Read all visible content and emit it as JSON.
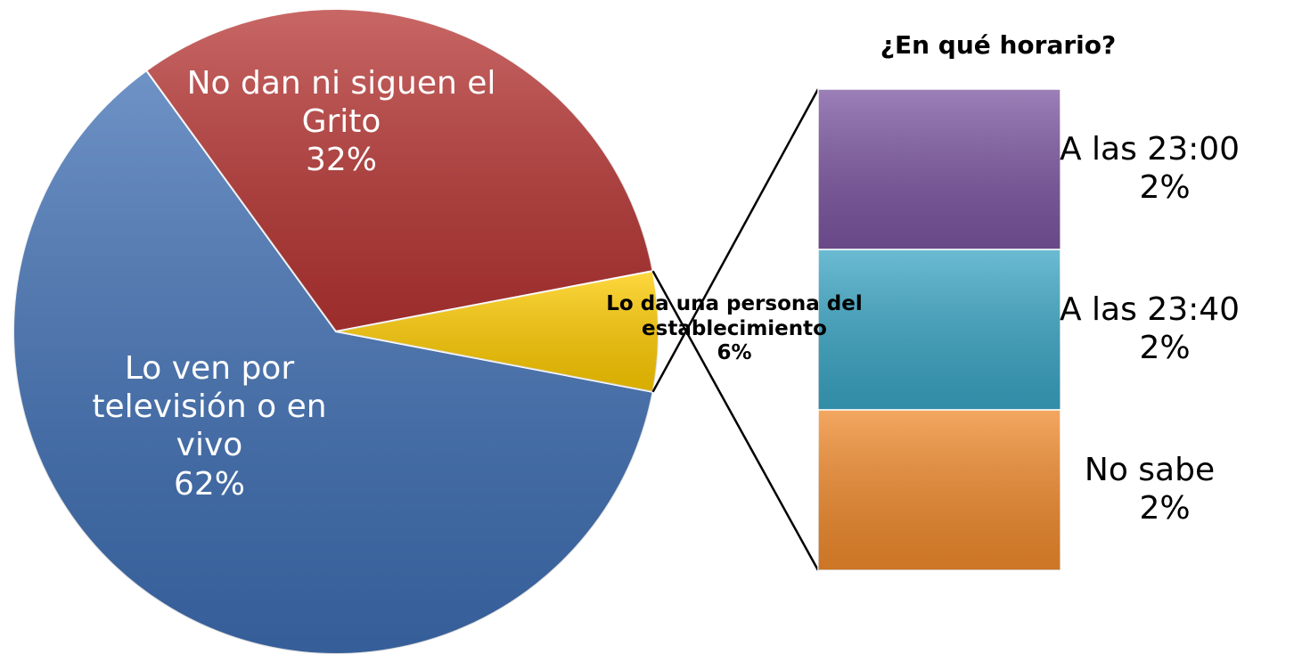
{
  "chart_data": {
    "type": "pie-of-bar",
    "pie": {
      "categories": [
        "Lo ven por televisión o en vivo",
        "No dan ni siguen el Grito",
        "Lo da una persona del establecimiento"
      ],
      "values": [
        62,
        32,
        6
      ],
      "value_labels": [
        "62%",
        "32%",
        "6%"
      ],
      "colors": [
        "#3f6fb4",
        "#b73533",
        "#ffcc00"
      ]
    },
    "bar": {
      "title": "¿En qué horario?",
      "categories": [
        "A las 23:00",
        "A las 23:40",
        "No sabe"
      ],
      "values": [
        2,
        2,
        2
      ],
      "value_labels": [
        "2%",
        "2%",
        "2%"
      ],
      "colors": [
        "#7b55a0",
        "#3aa5c4",
        "#f08a2c"
      ]
    }
  }
}
